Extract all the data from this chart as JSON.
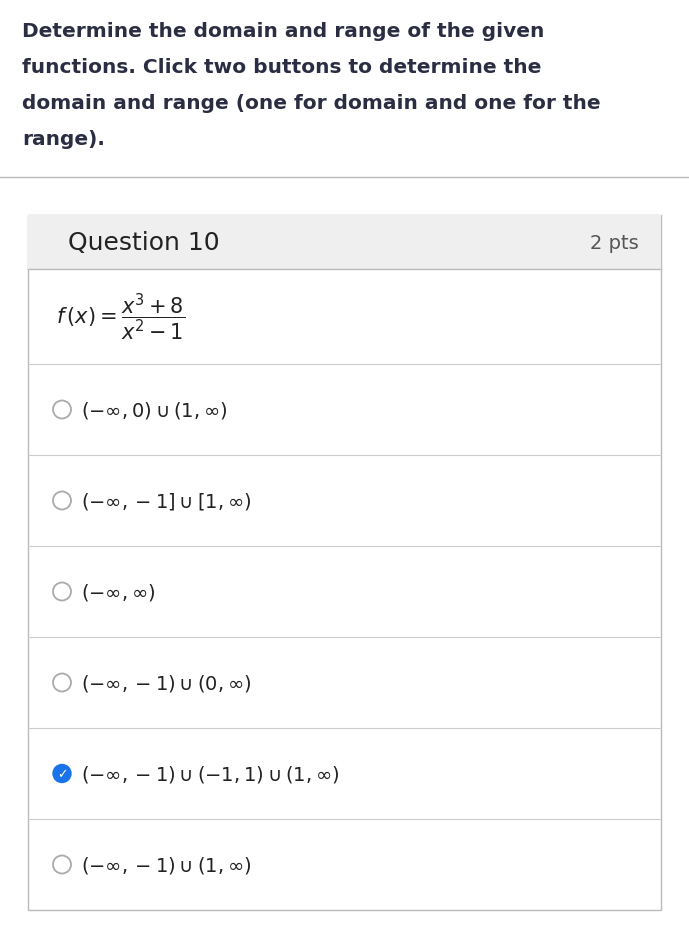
{
  "header_text_lines": [
    "Determine the domain and range of the given",
    "functions. Click two buttons to determine the",
    "domain and range (one for domain and one for the",
    "range)."
  ],
  "header_color": "#2b2d42",
  "header_fontsize": 14.5,
  "question_label": "Question 10",
  "points_label": "2 pts",
  "question_fontsize": 18,
  "points_fontsize": 14,
  "function_latex": "$f\\,(x) = \\dfrac{x^3+8}{x^2-1}$",
  "function_fontsize": 15,
  "options": [
    {
      "text": "$(-\\infty, 0) \\cup (1, \\infty)$",
      "checked": false
    },
    {
      "text": "$(-\\infty, -1] \\cup [1, \\infty)$",
      "checked": false
    },
    {
      "text": "$(-\\infty, \\infty)$",
      "checked": false
    },
    {
      "text": "$(-\\infty, -1) \\cup (0, \\infty)$",
      "checked": false
    },
    {
      "text": "$(-\\infty, -1) \\cup (-1, 1) \\cup (1, \\infty)$",
      "checked": true
    },
    {
      "text": "$(-\\infty, -1) \\cup (1, \\infty)$",
      "checked": false
    }
  ],
  "options_fontsize": 14,
  "box_border": "#bbbbbb",
  "header_bg": "#efefef",
  "check_color": "#1a73e8",
  "uncheck_color": "#aaaaaa",
  "bg_color": "#ffffff",
  "separator_color": "#cccccc",
  "header_sep_color": "#bbbbbb"
}
